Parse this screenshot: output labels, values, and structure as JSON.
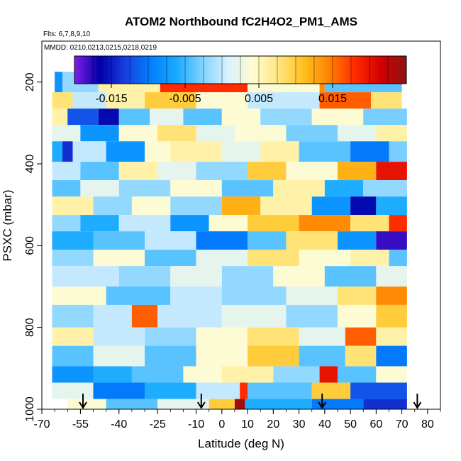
{
  "chart_data": {
    "type": "heatmap",
    "title": "ATOM2 Northbound fC2H4O2_PM1_AMS",
    "flights_label": "Flts: 6,7,8,9,10",
    "dates_label": "MMDD: 0210,0213,0215,0218,0219",
    "xlabel": "Latitude (deg N)",
    "ylabel": "PSXC (mbar)",
    "xlim": [
      -70,
      85
    ],
    "ylim": [
      1000,
      100
    ],
    "x_ticks": [
      -70,
      -55,
      -40,
      -25,
      -10,
      0,
      10,
      20,
      30,
      40,
      50,
      60,
      70,
      80
    ],
    "x_tick_labels": [
      "-70",
      "-55",
      "-40",
      "-25",
      "-10",
      "0",
      "10",
      "20",
      "30",
      "40",
      "50",
      "60",
      "70",
      "80"
    ],
    "y_ticks": [
      200,
      400,
      600,
      800,
      1000
    ],
    "y_tick_labels": [
      "200",
      "400",
      "600",
      "800",
      "1000"
    ],
    "colorbar": {
      "range": [
        -0.02,
        0.025
      ],
      "tick_values": [
        -0.015,
        -0.005,
        0.005,
        0.015
      ],
      "tick_labels": [
        "-0.015",
        "-0.005",
        "0.005",
        "0.015"
      ],
      "colors": [
        "#7f1fe6",
        "#0000a8",
        "#1a3fe0",
        "#0080ff",
        "#19aaff",
        "#80d2ff",
        "#d8f0ff",
        "#fffcd0",
        "#ffe680",
        "#ffbf1a",
        "#ff8000",
        "#ff2a00",
        "#d20000",
        "#8c1414"
      ]
    },
    "profile_markers_lat": [
      -54,
      -8,
      39,
      76
    ],
    "layers": [
      {
        "p_top": 175,
        "p_bot": 225,
        "segments": [
          [
            -65,
            -62,
            -0.008
          ],
          [
            -62,
            -48,
            -0.002
          ],
          [
            -48,
            -24,
            0.006
          ],
          [
            -24,
            10,
            0.018
          ],
          [
            10,
            38,
            0.004
          ],
          [
            38,
            40,
            0.014
          ],
          [
            40,
            70,
            -0.004
          ]
        ]
      },
      {
        "p_top": 225,
        "p_bot": 265,
        "segments": [
          [
            -66,
            -58,
            0.008
          ],
          [
            -58,
            -45,
            0.0
          ],
          [
            -45,
            -30,
            0.006
          ],
          [
            -30,
            -10,
            0.01
          ],
          [
            -10,
            10,
            0.004
          ],
          [
            10,
            38,
            0.0
          ],
          [
            38,
            58,
            0.016
          ],
          [
            58,
            70,
            0.008
          ]
        ]
      },
      {
        "p_top": 265,
        "p_bot": 305,
        "segments": [
          [
            -66,
            -60,
            0.006
          ],
          [
            -60,
            -48,
            -0.012
          ],
          [
            -48,
            -40,
            -0.016
          ],
          [
            -40,
            -28,
            -0.004
          ],
          [
            -28,
            -15,
            0.002
          ],
          [
            -15,
            0,
            -0.004
          ],
          [
            0,
            15,
            0.004
          ],
          [
            15,
            35,
            -0.002
          ],
          [
            35,
            55,
            0.004
          ],
          [
            55,
            72,
            -0.003
          ]
        ]
      },
      {
        "p_top": 305,
        "p_bot": 345,
        "segments": [
          [
            -66,
            -55,
            0.002
          ],
          [
            -55,
            -40,
            -0.008
          ],
          [
            -40,
            -25,
            0.004
          ],
          [
            -25,
            -10,
            0.008
          ],
          [
            -10,
            5,
            0.002
          ],
          [
            5,
            25,
            0.004
          ],
          [
            25,
            45,
            -0.003
          ],
          [
            45,
            60,
            0.002
          ],
          [
            60,
            72,
            0.006
          ]
        ]
      },
      {
        "p_top": 345,
        "p_bot": 395,
        "segments": [
          [
            -66,
            -62,
            -0.006
          ],
          [
            -62,
            -58,
            -0.014
          ],
          [
            -58,
            -45,
            0.0
          ],
          [
            -45,
            -30,
            -0.008
          ],
          [
            -30,
            -20,
            0.004
          ],
          [
            -20,
            0,
            0.006
          ],
          [
            0,
            15,
            0.002
          ],
          [
            15,
            30,
            0.006
          ],
          [
            30,
            50,
            -0.004
          ],
          [
            50,
            65,
            -0.01
          ],
          [
            65,
            72,
            -0.003
          ]
        ]
      },
      {
        "p_top": 395,
        "p_bot": 440,
        "segments": [
          [
            -66,
            -55,
            0.0
          ],
          [
            -55,
            -40,
            -0.004
          ],
          [
            -40,
            -25,
            0.006
          ],
          [
            -25,
            -10,
            0.002
          ],
          [
            -10,
            10,
            -0.002
          ],
          [
            10,
            25,
            0.01
          ],
          [
            25,
            45,
            0.004
          ],
          [
            45,
            60,
            0.012
          ],
          [
            60,
            72,
            0.02
          ]
        ]
      },
      {
        "p_top": 440,
        "p_bot": 480,
        "segments": [
          [
            -66,
            -55,
            -0.004
          ],
          [
            -55,
            -40,
            0.002
          ],
          [
            -40,
            -20,
            -0.002
          ],
          [
            -20,
            0,
            0.004
          ],
          [
            0,
            20,
            -0.004
          ],
          [
            20,
            40,
            0.006
          ],
          [
            40,
            55,
            -0.006
          ],
          [
            55,
            72,
            -0.002
          ]
        ]
      },
      {
        "p_top": 480,
        "p_bot": 525,
        "segments": [
          [
            -66,
            -50,
            0.006
          ],
          [
            -50,
            -35,
            -0.002
          ],
          [
            -35,
            -20,
            0.004
          ],
          [
            -20,
            0,
            -0.002
          ],
          [
            0,
            15,
            0.012
          ],
          [
            15,
            35,
            0.006
          ],
          [
            35,
            50,
            -0.008
          ],
          [
            50,
            60,
            -0.016
          ],
          [
            60,
            72,
            -0.006
          ]
        ]
      },
      {
        "p_top": 525,
        "p_bot": 565,
        "segments": [
          [
            -66,
            -55,
            -0.002
          ],
          [
            -55,
            -40,
            -0.006
          ],
          [
            -40,
            -20,
            0.0
          ],
          [
            -20,
            -5,
            -0.008
          ],
          [
            -5,
            10,
            0.004
          ],
          [
            10,
            30,
            0.01
          ],
          [
            30,
            50,
            0.014
          ],
          [
            50,
            65,
            0.008
          ],
          [
            65,
            72,
            0.018
          ]
        ]
      },
      {
        "p_top": 565,
        "p_bot": 610,
        "segments": [
          [
            -66,
            -50,
            -0.006
          ],
          [
            -50,
            -30,
            -0.004
          ],
          [
            -30,
            -10,
            0.0
          ],
          [
            -10,
            10,
            -0.01
          ],
          [
            10,
            25,
            -0.004
          ],
          [
            25,
            45,
            0.008
          ],
          [
            45,
            60,
            -0.008
          ],
          [
            60,
            72,
            -0.018
          ]
        ]
      },
      {
        "p_top": 610,
        "p_bot": 650,
        "segments": [
          [
            -66,
            -50,
            -0.002
          ],
          [
            -50,
            -30,
            0.004
          ],
          [
            -30,
            -10,
            -0.004
          ],
          [
            -10,
            10,
            0.002
          ],
          [
            10,
            30,
            0.008
          ],
          [
            30,
            50,
            0.004
          ],
          [
            50,
            65,
            0.006
          ],
          [
            65,
            72,
            -0.004
          ]
        ]
      },
      {
        "p_top": 650,
        "p_bot": 700,
        "segments": [
          [
            -66,
            -40,
            0.0
          ],
          [
            -40,
            -20,
            -0.002
          ],
          [
            -20,
            0,
            0.002
          ],
          [
            0,
            20,
            -0.002
          ],
          [
            20,
            40,
            0.004
          ],
          [
            40,
            60,
            -0.004
          ],
          [
            60,
            72,
            0.002
          ]
        ]
      },
      {
        "p_top": 700,
        "p_bot": 745,
        "segments": [
          [
            -66,
            -45,
            0.004
          ],
          [
            -45,
            -20,
            -0.004
          ],
          [
            -20,
            0,
            0.0
          ],
          [
            0,
            25,
            -0.002
          ],
          [
            25,
            45,
            0.002
          ],
          [
            45,
            60,
            0.008
          ],
          [
            60,
            72,
            0.014
          ]
        ]
      },
      {
        "p_top": 745,
        "p_bot": 800,
        "segments": [
          [
            -66,
            -50,
            -0.002
          ],
          [
            -50,
            -35,
            0.0
          ],
          [
            -35,
            -25,
            0.016
          ],
          [
            -25,
            0,
            0.0
          ],
          [
            0,
            25,
            0.002
          ],
          [
            25,
            45,
            -0.002
          ],
          [
            45,
            60,
            0.004
          ],
          [
            60,
            72,
            0.01
          ]
        ]
      },
      {
        "p_top": 800,
        "p_bot": 845,
        "segments": [
          [
            -66,
            -50,
            0.006
          ],
          [
            -50,
            -30,
            0.0
          ],
          [
            -30,
            -10,
            -0.002
          ],
          [
            -10,
            10,
            0.004
          ],
          [
            10,
            30,
            0.008
          ],
          [
            30,
            48,
            0.002
          ],
          [
            48,
            60,
            0.016
          ],
          [
            60,
            72,
            0.006
          ]
        ]
      },
      {
        "p_top": 845,
        "p_bot": 895,
        "segments": [
          [
            -66,
            -50,
            -0.004
          ],
          [
            -50,
            -30,
            0.002
          ],
          [
            -30,
            -10,
            -0.004
          ],
          [
            -10,
            10,
            0.004
          ],
          [
            10,
            30,
            0.01
          ],
          [
            30,
            48,
            -0.004
          ],
          [
            48,
            60,
            0.008
          ],
          [
            60,
            72,
            -0.01
          ]
        ]
      },
      {
        "p_top": 895,
        "p_bot": 935,
        "segments": [
          [
            -66,
            -50,
            -0.008
          ],
          [
            -50,
            -35,
            -0.006
          ],
          [
            -35,
            -15,
            -0.004
          ],
          [
            -15,
            0,
            0.004
          ],
          [
            0,
            20,
            0.006
          ],
          [
            20,
            38,
            -0.002
          ],
          [
            38,
            45,
            0.02
          ],
          [
            45,
            60,
            -0.004
          ],
          [
            60,
            72,
            0.004
          ]
        ]
      },
      {
        "p_top": 935,
        "p_bot": 975,
        "segments": [
          [
            -66,
            -50,
            0.002
          ],
          [
            -50,
            -30,
            -0.01
          ],
          [
            -30,
            -10,
            -0.006
          ],
          [
            -10,
            7,
            0.0
          ],
          [
            7,
            10,
            0.018
          ],
          [
            10,
            35,
            -0.004
          ],
          [
            35,
            50,
            0.01
          ],
          [
            50,
            72,
            -0.012
          ]
        ]
      },
      {
        "p_top": 975,
        "p_bot": 1000,
        "segments": [
          [
            -60,
            -45,
            0.004
          ],
          [
            -45,
            -25,
            -0.004
          ],
          [
            -25,
            -5,
            0.002
          ],
          [
            -5,
            5,
            0.01
          ],
          [
            5,
            9,
            0.024
          ],
          [
            9,
            35,
            -0.006
          ],
          [
            35,
            55,
            -0.01
          ],
          [
            55,
            72,
            -0.014
          ]
        ]
      }
    ]
  }
}
